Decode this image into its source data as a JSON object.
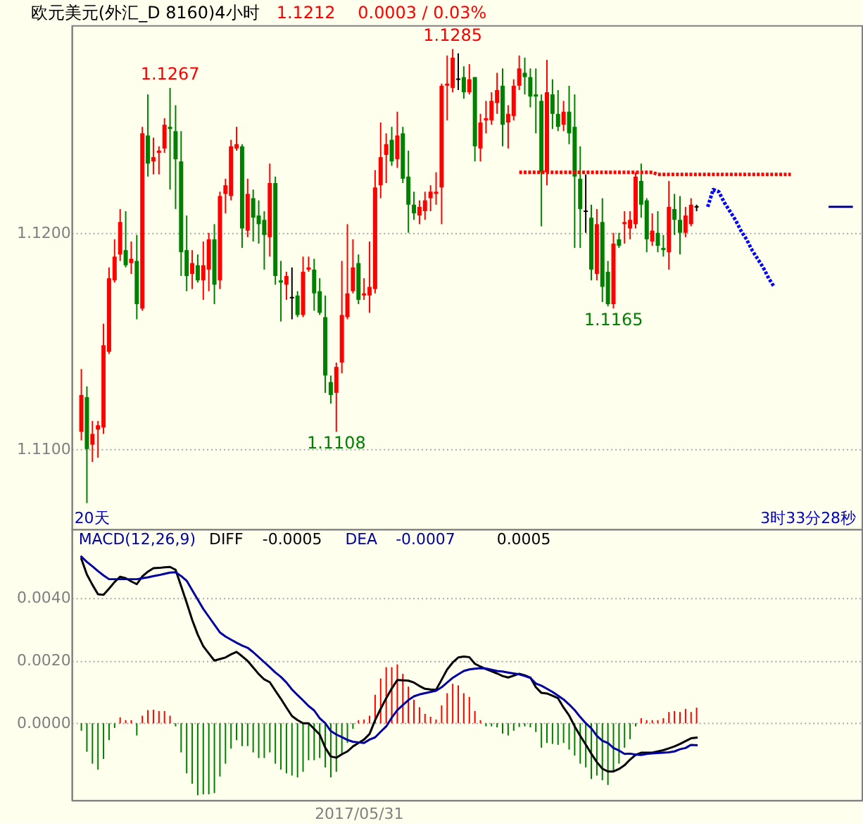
{
  "chart_data": [
    {
      "type": "candlestick",
      "title": "欧元美元(外汇_D 8160)4小时",
      "categories": [
        null,
        null,
        null,
        null,
        null,
        null,
        null,
        null,
        null,
        null,
        null,
        null,
        null,
        null,
        null,
        null,
        null,
        null,
        null,
        null,
        null,
        null,
        null,
        null,
        null,
        null,
        null,
        null,
        null,
        null,
        null,
        null,
        null,
        null,
        null,
        null,
        null,
        null,
        null,
        null,
        null,
        null,
        null,
        null,
        null,
        null,
        null,
        null,
        null,
        null,
        null,
        null,
        null,
        null,
        null,
        null,
        null,
        null,
        null,
        null,
        null,
        null,
        null,
        null,
        null,
        null,
        null,
        null,
        null,
        null,
        null,
        null,
        null,
        null,
        null,
        null,
        null,
        null,
        null,
        null,
        null,
        null,
        null,
        null,
        null,
        null,
        null,
        null,
        null,
        null,
        null,
        null,
        null,
        null,
        null,
        null,
        null,
        null,
        null,
        null,
        null,
        null,
        null,
        null,
        null,
        null,
        null,
        null,
        null,
        null,
        null,
        null,
        null,
        null,
        null,
        null,
        null,
        null,
        null,
        null,
        null,
        null,
        null,
        null,
        null,
        null,
        null,
        null,
        null,
        null,
        null,
        null,
        null,
        null,
        null,
        null,
        null,
        null,
        null,
        null
      ],
      "ohlc": [
        [
          1.1108,
          1.1137,
          1.1104,
          1.1125
        ],
        [
          1.1124,
          1.1129,
          1.1075,
          1.11
        ],
        [
          1.1102,
          1.1113,
          1.1094,
          1.1107
        ],
        [
          1.1109,
          1.1113,
          1.1096,
          1.1111
        ],
        [
          1.111,
          1.1158,
          1.1107,
          1.1148
        ],
        [
          1.1145,
          1.1184,
          1.1144,
          1.1179
        ],
        [
          1.1178,
          1.1197,
          1.1177,
          1.1189
        ],
        [
          1.119,
          1.1211,
          1.1187,
          1.1205
        ],
        [
          1.1192,
          1.121,
          1.1184,
          1.1185
        ],
        [
          1.1186,
          1.1196,
          1.1181,
          1.1188
        ],
        [
          1.1187,
          1.1199,
          1.116,
          1.1167
        ],
        [
          1.1165,
          1.1249,
          1.1164,
          1.1246
        ],
        [
          1.1245,
          1.1264,
          1.1226,
          1.1232
        ],
        [
          1.1233,
          1.1244,
          1.1227,
          1.1235
        ],
        [
          1.1237,
          1.124,
          1.1227,
          1.1238
        ],
        [
          1.1239,
          1.1253,
          1.1237,
          1.125
        ],
        [
          1.1249,
          1.1267,
          1.122,
          1.1248
        ],
        [
          1.1247,
          1.1259,
          1.1211,
          1.1234
        ],
        [
          1.1233,
          1.1247,
          1.118,
          1.1191
        ],
        [
          1.1192,
          1.1208,
          1.1173,
          1.118
        ],
        [
          1.1181,
          1.1192,
          1.1174,
          1.1186
        ],
        [
          1.1185,
          1.119,
          1.1177,
          1.1178
        ],
        [
          1.1178,
          1.1196,
          1.1169,
          1.1185
        ],
        [
          1.1183,
          1.12,
          1.1173,
          1.1197
        ],
        [
          1.1197,
          1.1204,
          1.1167,
          1.1176
        ],
        [
          1.1178,
          1.1219,
          1.1174,
          1.1217
        ],
        [
          1.1218,
          1.1225,
          1.1209,
          1.1222
        ],
        [
          1.1217,
          1.1243,
          1.1215,
          1.124
        ],
        [
          1.1239,
          1.1249,
          1.1238,
          1.1241
        ],
        [
          1.124,
          1.1241,
          1.1193,
          1.1202
        ],
        [
          1.1201,
          1.1225,
          1.1198,
          1.1218
        ],
        [
          1.1216,
          1.122,
          1.1196,
          1.1207
        ],
        [
          1.1208,
          1.1215,
          1.1195,
          1.1204
        ],
        [
          1.1206,
          1.121,
          1.1183,
          1.1199
        ],
        [
          1.1198,
          1.1232,
          1.1189,
          1.1223
        ],
        [
          1.1223,
          1.1226,
          1.1176,
          1.118
        ],
        [
          1.1178,
          1.1187,
          1.1159,
          1.1177
        ],
        [
          1.1176,
          1.1182,
          1.1169,
          1.118
        ],
        [
          1.117,
          1.1184,
          1.116,
          1.117
        ],
        [
          1.1171,
          1.1173,
          1.1161,
          1.1162
        ],
        [
          1.1162,
          1.1189,
          1.1161,
          1.1182
        ],
        [
          1.1183,
          1.1189,
          1.1182,
          1.1184
        ],
        [
          1.1183,
          1.1188,
          1.1164,
          1.1172
        ],
        [
          1.1173,
          1.1179,
          1.1162,
          1.1163
        ],
        [
          1.1161,
          1.1171,
          1.1126,
          1.1134
        ],
        [
          1.1131,
          1.1134,
          1.1121,
          1.1125
        ],
        [
          1.1126,
          1.114,
          1.1108,
          1.1138
        ],
        [
          1.114,
          1.1187,
          1.1135,
          1.1162
        ],
        [
          1.1161,
          1.1204,
          1.116,
          1.1172
        ],
        [
          1.1173,
          1.1197,
          1.1172,
          1.1184
        ],
        [
          1.1186,
          1.119,
          1.1167,
          1.1169
        ],
        [
          1.1171,
          1.1179,
          1.1169,
          1.1172
        ],
        [
          1.1171,
          1.1196,
          1.1163,
          1.1175
        ],
        [
          1.1174,
          1.1229,
          1.1172,
          1.1221
        ],
        [
          1.1222,
          1.1251,
          1.1216,
          1.1235
        ],
        [
          1.1236,
          1.1246,
          1.1223,
          1.1241
        ],
        [
          1.1243,
          1.1249,
          1.1231,
          1.1233
        ],
        [
          1.1234,
          1.1256,
          1.123,
          1.1245
        ],
        [
          1.1246,
          1.1249,
          1.1223,
          1.1225
        ],
        [
          1.1226,
          1.1238,
          1.12,
          1.1213
        ],
        [
          1.1213,
          1.1219,
          1.1206,
          1.1209
        ],
        [
          1.1208,
          1.1215,
          1.1204,
          1.1212
        ],
        [
          1.121,
          1.1219,
          1.1206,
          1.1215
        ],
        [
          1.1216,
          1.1222,
          1.121,
          1.1219
        ],
        [
          1.1218,
          1.1228,
          1.1213,
          1.1219
        ],
        [
          1.1221,
          1.1269,
          1.1204,
          1.1268
        ],
        [
          1.1268,
          1.1282,
          1.1252,
          1.1269
        ],
        [
          1.1267,
          1.1285,
          1.1265,
          1.1281
        ],
        [
          1.1271,
          1.1283,
          1.1266,
          1.1271
        ],
        [
          1.1272,
          1.1277,
          1.1262,
          1.1265
        ],
        [
          1.1265,
          1.1278,
          1.1264,
          1.1271
        ],
        [
          1.1272,
          1.1272,
          1.1233,
          1.124
        ],
        [
          1.1239,
          1.1255,
          1.1233,
          1.1251
        ],
        [
          1.1252,
          1.1261,
          1.1246,
          1.1253
        ],
        [
          1.1252,
          1.1265,
          1.125,
          1.1261
        ],
        [
          1.126,
          1.1274,
          1.1255,
          1.1266
        ],
        [
          1.1268,
          1.1276,
          1.124,
          1.125
        ],
        [
          1.1251,
          1.1259,
          1.1239,
          1.1255
        ],
        [
          1.1254,
          1.1271,
          1.1252,
          1.1268
        ],
        [
          1.1268,
          1.1282,
          1.1266,
          1.1276
        ],
        [
          1.1274,
          1.1281,
          1.1264,
          1.1272
        ],
        [
          1.1272,
          1.1276,
          1.1258,
          1.1263
        ],
        [
          1.1264,
          1.1276,
          1.1246,
          1.1263
        ],
        [
          1.1261,
          1.1264,
          1.1203,
          1.1228
        ],
        [
          1.1228,
          1.128,
          1.1222,
          1.1265
        ],
        [
          1.1264,
          1.1271,
          1.1248,
          1.1255
        ],
        [
          1.1255,
          1.1266,
          1.1247,
          1.1249
        ],
        [
          1.125,
          1.1261,
          1.1247,
          1.1256
        ],
        [
          1.1256,
          1.1268,
          1.1241,
          1.1246
        ],
        [
          1.1249,
          1.1264,
          1.1193,
          1.1226
        ],
        [
          1.1225,
          1.124,
          1.1193,
          1.1211
        ],
        [
          1.121,
          1.1227,
          1.12,
          1.121
        ],
        [
          1.1207,
          1.1213,
          1.1178,
          1.1183
        ],
        [
          1.1181,
          1.1211,
          1.1178,
          1.1204
        ],
        [
          1.1205,
          1.1216,
          1.1168,
          1.1175
        ],
        [
          1.1182,
          1.1187,
          1.1166,
          1.1167
        ],
        [
          1.1167,
          1.12,
          1.1165,
          1.1195
        ],
        [
          1.1197,
          1.12,
          1.1193,
          1.1194
        ],
        [
          1.1204,
          1.121,
          1.1195,
          1.1205
        ],
        [
          1.1202,
          1.121,
          1.1197,
          1.1206
        ],
        [
          1.1204,
          1.1228,
          1.1202,
          1.1226
        ],
        [
          1.1224,
          1.1232,
          1.1207,
          1.1213
        ],
        [
          1.1215,
          1.1216,
          1.1191,
          1.1197
        ],
        [
          1.1196,
          1.1209,
          1.1194,
          1.1201
        ],
        [
          1.12,
          1.121,
          1.1191,
          1.1194
        ],
        [
          1.1193,
          1.1199,
          1.1189,
          1.1192
        ],
        [
          1.1191,
          1.1224,
          1.1183,
          1.1212
        ],
        [
          1.1211,
          1.1218,
          1.1199,
          1.1206
        ],
        [
          1.1206,
          1.1217,
          1.119,
          1.12
        ],
        [
          1.12,
          1.1212,
          1.1198,
          1.1208
        ],
        [
          1.1204,
          1.1216,
          1.1203,
          1.1213
        ],
        [
          1.1212,
          1.1213,
          1.121,
          1.1212
        ],
        null,
        null,
        null,
        null,
        null,
        null,
        null,
        null,
        null,
        null,
        null,
        null,
        null,
        null,
        null,
        null,
        null,
        null,
        null,
        null,
        null,
        null,
        null,
        null,
        null,
        null,
        null,
        null
      ],
      "colors": [
        "#ff0000",
        "#008000",
        "#ff0000",
        "#ff0000",
        "#ff0000",
        "#ff0000",
        "#ff0000",
        "#ff0000",
        "#008000",
        "#ff0000",
        "#008000",
        "#ff0000",
        "#008000",
        "#ff0000",
        "#ff0000",
        "#ff0000",
        "#008000",
        "#008000",
        "#008000",
        "#008000",
        "#ff0000",
        "#008000",
        "#ff0000",
        "#ff0000",
        "#008000",
        "#ff0000",
        "#ff0000",
        "#ff0000",
        "#ff0000",
        "#008000",
        "#ff0000",
        "#008000",
        "#008000",
        "#008000",
        "#ff0000",
        "#008000",
        "#008000",
        "#ff0000",
        "#000000",
        "#008000",
        "#ff0000",
        "#ff0000",
        "#008000",
        "#008000",
        "#008000",
        "#008000",
        "#ff0000",
        "#ff0000",
        "#ff0000",
        "#ff0000",
        "#008000",
        "#ff0000",
        "#ff0000",
        "#ff0000",
        "#ff0000",
        "#ff0000",
        "#008000",
        "#ff0000",
        "#008000",
        "#008000",
        "#008000",
        "#ff0000",
        "#ff0000",
        "#ff0000",
        "#ff0000",
        "#ff0000",
        "#ff0000",
        "#ff0000",
        "#000000",
        "#008000",
        "#ff0000",
        "#008000",
        "#ff0000",
        "#ff0000",
        "#ff0000",
        "#ff0000",
        "#008000",
        "#ff0000",
        "#ff0000",
        "#ff0000",
        "#008000",
        "#008000",
        "#008000",
        "#008000",
        "#ff0000",
        "#008000",
        "#008000",
        "#ff0000",
        "#008000",
        "#008000",
        "#008000",
        "#000000",
        "#008000",
        "#ff0000",
        "#008000",
        "#008000",
        "#ff0000",
        "#008000",
        "#ff0000",
        "#ff0000",
        "#ff0000",
        "#008000",
        "#008000",
        "#ff0000",
        "#008000",
        "#008000",
        "#ff0000",
        "#008000",
        "#008000",
        "#ff0000",
        "#ff0000",
        "#000000",
        null,
        null,
        null,
        null,
        null,
        null,
        null,
        null,
        null,
        null,
        null,
        null,
        null,
        null,
        null,
        null,
        null,
        null,
        null,
        null,
        null,
        null,
        null,
        null,
        null,
        null,
        null,
        null
      ],
      "series": [
        {
          "type": "line",
          "color": "#ff0000",
          "line_style": "dotted",
          "values": [
            null,
            null,
            null,
            null,
            null,
            null,
            null,
            null,
            null,
            null,
            null,
            null,
            null,
            null,
            null,
            null,
            null,
            null,
            null,
            null,
            null,
            null,
            null,
            null,
            null,
            null,
            null,
            null,
            null,
            null,
            null,
            null,
            null,
            null,
            null,
            null,
            null,
            null,
            null,
            null,
            null,
            null,
            null,
            null,
            null,
            null,
            null,
            null,
            null,
            null,
            null,
            null,
            null,
            null,
            null,
            null,
            null,
            null,
            null,
            null,
            null,
            null,
            null,
            null,
            null,
            null,
            null,
            null,
            null,
            null,
            null,
            null,
            null,
            null,
            null,
            null,
            null,
            null,
            null,
            1.1228,
            1.1228,
            1.1228,
            1.1228,
            1.1228,
            1.1228,
            1.1228,
            1.1228,
            1.1228,
            1.1228,
            1.1228,
            1.1228,
            1.1228,
            1.1228,
            1.1228,
            1.1228,
            1.1228,
            1.1228,
            1.1228,
            1.1228,
            1.1228,
            1.1228,
            1.1228,
            1.1228,
            1.1228,
            1.1227,
            1.1227,
            1.1227,
            1.1227,
            1.1227,
            1.1227,
            1.1227,
            1.1227,
            1.1227,
            1.1227,
            1.1227,
            1.1227,
            1.1227,
            1.1227,
            1.1227,
            1.1227,
            1.1227,
            1.1227,
            1.1227,
            1.1227,
            1.1227,
            1.1227,
            1.1227,
            1.1227,
            1.1227,
            null,
            null,
            null,
            null,
            null,
            null,
            null,
            null,
            null,
            null,
            null
          ]
        },
        {
          "type": "line",
          "color": "#0000ff",
          "line_style": "dotted",
          "values": [
            null,
            null,
            null,
            null,
            null,
            null,
            null,
            null,
            null,
            null,
            null,
            null,
            null,
            null,
            null,
            null,
            null,
            null,
            null,
            null,
            null,
            null,
            null,
            null,
            null,
            null,
            null,
            null,
            null,
            null,
            null,
            null,
            null,
            null,
            null,
            null,
            null,
            null,
            null,
            null,
            null,
            null,
            null,
            null,
            null,
            null,
            null,
            null,
            null,
            null,
            null,
            null,
            null,
            null,
            null,
            null,
            null,
            null,
            null,
            null,
            null,
            null,
            null,
            null,
            null,
            null,
            null,
            null,
            null,
            null,
            null,
            null,
            null,
            null,
            null,
            null,
            null,
            null,
            null,
            null,
            null,
            null,
            null,
            null,
            null,
            null,
            null,
            null,
            null,
            null,
            null,
            null,
            null,
            null,
            null,
            null,
            null,
            null,
            null,
            null,
            null,
            null,
            null,
            null,
            null,
            null,
            null,
            null,
            null,
            null,
            null,
            null,
            null,
            1.1212,
            1.122,
            1.1219,
            1.1214,
            1.121,
            1.1206,
            1.1201,
            1.1197,
            1.1192,
            1.1188,
            1.1184,
            1.1179,
            1.1175,
            null,
            null,
            null,
            null,
            null,
            null,
            null,
            null,
            null,
            null,
            null,
            null,
            null,
            null
          ]
        },
        {
          "type": "line",
          "color": "#000080",
          "line_style": "solid",
          "values": [
            null,
            null,
            null,
            null,
            null,
            null,
            null,
            null,
            null,
            null,
            null,
            null,
            null,
            null,
            null,
            null,
            null,
            null,
            null,
            null,
            null,
            null,
            null,
            null,
            null,
            null,
            null,
            null,
            null,
            null,
            null,
            null,
            null,
            null,
            null,
            null,
            null,
            null,
            null,
            null,
            null,
            null,
            null,
            null,
            null,
            null,
            null,
            null,
            null,
            null,
            null,
            null,
            null,
            null,
            null,
            null,
            null,
            null,
            null,
            null,
            null,
            null,
            null,
            null,
            null,
            null,
            null,
            null,
            null,
            null,
            null,
            null,
            null,
            null,
            null,
            null,
            null,
            null,
            null,
            null,
            null,
            null,
            null,
            null,
            null,
            null,
            null,
            null,
            null,
            null,
            null,
            null,
            null,
            null,
            null,
            null,
            null,
            null,
            null,
            null,
            null,
            null,
            null,
            null,
            null,
            null,
            null,
            null,
            null,
            null,
            null,
            null,
            null,
            null,
            null,
            null,
            null,
            null,
            null,
            null,
            null,
            null,
            null,
            null,
            null,
            null,
            null,
            null,
            null,
            null,
            null,
            null,
            null,
            null,
            null,
            1.1212,
            1.1212,
            1.1212,
            1.1212,
            1.1212
          ]
        }
      ],
      "ylim": [
        1.1063,
        1.1296
      ],
      "yticks": [
        {
          "value": 1.11,
          "label": "1.1100"
        },
        {
          "value": 1.12,
          "label": "1.1200"
        }
      ],
      "grid": "y",
      "tick_labels": "y",
      "annotations": [
        {
          "text": "1.1267",
          "y": 1.1267
        },
        {
          "text": "1.1285",
          "y": 1.1285
        },
        {
          "text": "1.1108",
          "y": 1.1108
        },
        {
          "text": "1.1165",
          "y": 1.1165
        },
        "1.1212",
        "0.0003 / 0.03%",
        "20天",
        "3时33分28秒"
      ]
    },
    {
      "type": "line",
      "title": "MACD(12,26,9)",
      "categories": [
        null,
        null,
        null,
        null,
        null,
        null,
        null,
        null,
        null,
        null,
        null,
        null,
        null,
        null,
        null,
        null,
        null,
        null,
        null,
        null,
        null,
        null,
        null,
        null,
        null,
        null,
        null,
        null,
        null,
        null,
        null,
        null,
        null,
        null,
        null,
        null,
        null,
        null,
        null,
        null,
        null,
        null,
        null,
        null,
        null,
        null,
        null,
        null,
        null,
        null,
        "2017/05/31",
        null,
        null,
        null,
        null,
        null,
        null,
        null,
        null,
        null,
        null,
        null,
        null,
        null,
        null,
        null,
        null,
        null,
        null,
        null,
        null,
        null,
        null,
        null,
        null,
        null,
        null,
        null,
        null,
        null,
        null,
        null,
        null,
        null,
        null,
        null,
        null,
        null,
        null,
        null,
        null,
        null,
        null,
        null,
        null,
        null,
        null,
        null,
        null,
        null,
        null,
        null,
        null,
        null,
        null,
        null,
        null,
        null,
        null,
        null,
        null,
        null,
        null,
        null,
        null,
        null,
        null,
        null,
        null,
        null,
        null,
        null,
        null,
        null,
        null,
        null,
        null,
        null,
        null,
        null,
        null,
        null,
        null,
        null,
        null,
        null,
        null,
        null,
        null,
        null
      ],
      "series": [
        {
          "type": "bar",
          "values": [
            -0.00024,
            -0.00091,
            -0.00129,
            -0.00148,
            -0.00114,
            -0.00054,
            -0.00015,
            0.00019,
            0.0001,
            0.0001,
            -0.00039,
            0.00024,
            0.00042,
            0.00043,
            0.00039,
            0.00039,
            0.00024,
            -0.0001,
            -0.00093,
            -0.0016,
            -0.00193,
            -0.0023,
            -0.00227,
            -0.00227,
            -0.00223,
            -0.0017,
            -0.00129,
            -0.00081,
            -0.00054,
            -0.00073,
            -0.00073,
            -0.00093,
            -0.00111,
            -0.00111,
            -0.00093,
            -0.00129,
            -0.00148,
            -0.0016,
            -0.00167,
            -0.00173,
            -0.00155,
            -0.00118,
            -0.00118,
            -0.00111,
            -0.00141,
            -0.00173,
            -0.00155,
            -0.00096,
            -0.00063,
            -0.00018,
            0.0001,
            0.00012,
            0.00024,
            0.00091,
            0.00143,
            0.00179,
            0.00179,
            0.00188,
            0.00158,
            0.00117,
            0.00075,
            0.00051,
            0.0003,
            0.00021,
            0.00012,
            0.00057,
            0.00096,
            0.00126,
            0.00121,
            0.00096,
            0.00084,
            0.00039,
            0.0001,
            -0.0001,
            -0.0001,
            -0.00013,
            -0.00033,
            -0.00039,
            -0.00024,
            -0.00012,
            -0.0001,
            -0.00013,
            -0.00028,
            -0.00078,
            -0.00063,
            -0.00066,
            -0.00069,
            -0.00063,
            -0.00084,
            -0.00103,
            -0.00129,
            -0.00141,
            -0.00178,
            -0.00167,
            -0.00182,
            -0.00197,
            -0.00155,
            -0.00129,
            -0.00078,
            -0.00051,
            -0.0001,
            0.00016,
            0.0001,
            0.0001,
            0.0001,
            0.00016,
            0.00036,
            0.00039,
            0.00036,
            0.00046,
            0.00036,
            0.0005,
            null,
            null,
            null,
            null,
            null,
            null,
            null,
            null,
            null,
            null,
            null,
            null,
            null,
            null,
            null,
            null,
            null,
            null,
            null,
            null,
            null,
            null,
            null,
            null,
            null,
            null,
            null,
            null
          ],
          "colors": [
            "#008000",
            "#008000",
            "#008000",
            "#008000",
            "#008000",
            "#008000",
            "#008000",
            "#ff0000",
            "#ff0000",
            "#ff0000",
            "#008000",
            "#ff0000",
            "#ff0000",
            "#ff0000",
            "#ff0000",
            "#ff0000",
            "#ff0000",
            "#008000",
            "#008000",
            "#008000",
            "#008000",
            "#008000",
            "#008000",
            "#008000",
            "#008000",
            "#008000",
            "#008000",
            "#008000",
            "#008000",
            "#008000",
            "#008000",
            "#008000",
            "#008000",
            "#008000",
            "#008000",
            "#008000",
            "#008000",
            "#008000",
            "#008000",
            "#008000",
            "#008000",
            "#008000",
            "#008000",
            "#008000",
            "#008000",
            "#008000",
            "#008000",
            "#008000",
            "#008000",
            "#008000",
            "#ff0000",
            "#ff0000",
            "#ff0000",
            "#ff0000",
            "#ff0000",
            "#ff0000",
            "#ff0000",
            "#ff0000",
            "#ff0000",
            "#ff0000",
            "#ff0000",
            "#ff0000",
            "#ff0000",
            "#ff0000",
            "#ff0000",
            "#ff0000",
            "#ff0000",
            "#ff0000",
            "#ff0000",
            "#ff0000",
            "#ff0000",
            "#ff0000",
            "#ff0000",
            "#008000",
            "#008000",
            "#008000",
            "#008000",
            "#008000",
            "#008000",
            "#008000",
            "#008000",
            "#008000",
            "#008000",
            "#008000",
            "#008000",
            "#008000",
            "#008000",
            "#008000",
            "#008000",
            "#008000",
            "#008000",
            "#008000",
            "#008000",
            "#008000",
            "#008000",
            "#008000",
            "#008000",
            "#008000",
            "#008000",
            "#008000",
            "#008000",
            "#ff0000",
            "#ff0000",
            "#ff0000",
            "#ff0000",
            "#ff0000",
            "#ff0000",
            "#ff0000",
            "#ff0000",
            "#ff0000",
            "#ff0000",
            "#ff0000",
            null,
            null,
            null,
            null,
            null,
            null,
            null,
            null,
            null,
            null,
            null,
            null,
            null,
            null,
            null,
            null,
            null,
            null,
            null,
            null,
            null,
            null,
            null,
            null,
            null,
            null,
            null,
            null
          ]
        },
        {
          "name": "DIFF",
          "color": "#000000",
          "values": [
            0.00525,
            0.00475,
            0.00442,
            0.00412,
            0.0041,
            0.0043,
            0.00451,
            0.00468,
            0.00463,
            0.00453,
            0.00444,
            0.00469,
            0.00484,
            0.00495,
            0.00496,
            0.00498,
            0.00499,
            0.0049,
            0.00438,
            0.00385,
            0.0033,
            0.00283,
            0.00246,
            0.00223,
            0.002,
            0.00205,
            0.0021,
            0.0022,
            0.00228,
            0.00214,
            0.00199,
            0.00178,
            0.00157,
            0.0014,
            0.00131,
            0.00104,
            0.00078,
            0.0005,
            0.00023,
            0.0001,
            0.0,
            0.0,
            -0.00018,
            -0.00036,
            -0.00078,
            -0.00106,
            -0.0011,
            -0.00099,
            -0.0009,
            -0.00074,
            -0.00063,
            -0.00052,
            -0.00034,
            0.0001,
            0.00046,
            0.0008,
            0.00111,
            0.00138,
            0.00137,
            0.00136,
            0.0013,
            0.00119,
            0.0011,
            0.00108,
            0.00107,
            0.00139,
            0.00172,
            0.00194,
            0.0021,
            0.00213,
            0.00211,
            0.0019,
            0.00181,
            0.00173,
            0.00166,
            0.00159,
            0.00151,
            0.00146,
            0.00152,
            0.00158,
            0.00153,
            0.00146,
            0.00115,
            0.00097,
            0.00095,
            0.00088,
            0.0008,
            0.0005,
            0.00025,
            -0.0001,
            -0.0004,
            -0.00068,
            -0.00097,
            -0.00124,
            -0.00145,
            -0.00154,
            -0.00154,
            -0.00146,
            -0.00134,
            -0.00116,
            -0.00101,
            -0.00094,
            -0.00094,
            -0.00094,
            -0.0009,
            -0.00086,
            -0.0008,
            -0.00074,
            -0.00066,
            -0.00057,
            -0.00048,
            -0.00046,
            null,
            null,
            null,
            null,
            null,
            null,
            null,
            null,
            null,
            null,
            null,
            null,
            null,
            null,
            null,
            null,
            null,
            null,
            null,
            null,
            null,
            null,
            null,
            null,
            null,
            null,
            null,
            null
          ]
        },
        {
          "name": "DEA",
          "color": "#0000a0",
          "values": [
            0.00532,
            0.00515,
            0.00501,
            0.00486,
            0.00472,
            0.0046,
            0.0046,
            0.0046,
            0.0046,
            0.0046,
            0.0046,
            0.00463,
            0.00466,
            0.0047,
            0.00473,
            0.00477,
            0.00481,
            0.00482,
            0.0047,
            0.00455,
            0.00425,
            0.00395,
            0.00365,
            0.0034,
            0.00315,
            0.0029,
            0.00277,
            0.00267,
            0.00257,
            0.00248,
            0.00241,
            0.00227,
            0.00211,
            0.00195,
            0.00179,
            0.00162,
            0.00148,
            0.0013,
            0.00108,
            0.0009,
            0.00073,
            0.00055,
            0.00041,
            0.00016,
            0.0,
            -0.00025,
            -0.00036,
            -0.00044,
            -0.00053,
            -0.00059,
            -0.00061,
            -0.00063,
            -0.00052,
            -0.00045,
            -0.00027,
            -0.0001,
            0.00018,
            0.00042,
            0.00058,
            0.00074,
            0.00086,
            0.00092,
            0.00096,
            0.001,
            0.00104,
            0.00115,
            0.0013,
            0.00145,
            0.00156,
            0.00167,
            0.00172,
            0.00174,
            0.00176,
            0.00175,
            0.00171,
            0.00167,
            0.00165,
            0.00162,
            0.00159,
            0.00156,
            0.00151,
            0.00145,
            0.00127,
            0.0012,
            0.0011,
            0.001,
            0.00088,
            0.00076,
            0.0006,
            0.00042,
            0.0002,
            0.0,
            -0.00016,
            -0.0004,
            -0.00056,
            -0.00063,
            -0.00079,
            -0.00087,
            -0.00098,
            -0.00097,
            -0.001,
            -0.00101,
            -0.00098,
            -0.00096,
            -0.00095,
            -0.00094,
            -0.00093,
            -0.0009,
            -0.00083,
            -0.00079,
            -0.00069,
            -0.0007,
            null,
            null,
            null,
            null,
            null,
            null,
            null,
            null,
            null,
            null,
            null,
            null,
            null,
            null,
            null,
            null,
            null,
            null,
            null,
            null,
            null,
            null,
            null,
            null,
            null,
            null,
            null,
            null
          ]
        }
      ],
      "ylim": [
        -0.00245,
        0.0062
      ],
      "yticks": [
        {
          "value": 0.0,
          "label": "0.0000"
        },
        {
          "value": 0.002,
          "label": "0.0020"
        },
        {
          "value": 0.004,
          "label": "0.0040"
        }
      ],
      "grid": "y",
      "legend": "top left",
      "annotations": [
        "-0.0005",
        "-0.0007",
        "0.0005"
      ]
    }
  ]
}
